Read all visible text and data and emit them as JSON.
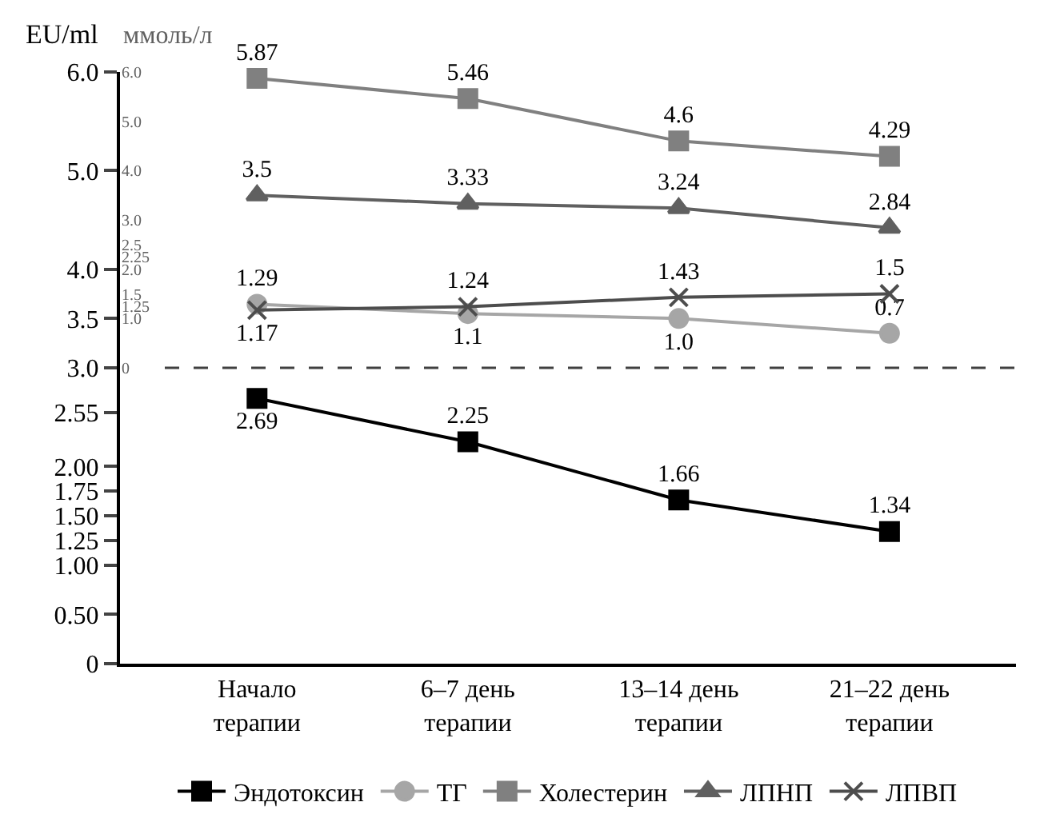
{
  "chart_data": {
    "type": "line",
    "categories": [
      "Начало\nтерапии",
      "6–7 день\nтерапии",
      "13–14 день\nтерапии",
      "21–22 день\nтерапии"
    ],
    "ylabel": "EU/ml",
    "y2label": "ммоль/л",
    "ylim": [
      0,
      6
    ],
    "yticks": [
      0,
      {
        "value": 0.5,
        "label": "0.50"
      },
      {
        "value": 1,
        "label": "1.00"
      },
      1.25,
      {
        "value": 1.5,
        "label": "1.50"
      },
      1.75,
      {
        "value": 2,
        "label": "2.00"
      },
      2.55,
      {
        "value": 3,
        "label": "3.0"
      },
      3.5,
      {
        "value": 4,
        "label": "4.0"
      },
      {
        "value": 5,
        "label": "5.0"
      },
      {
        "value": 6,
        "label": "6.0"
      }
    ],
    "y2lim": [
      0,
      6
    ],
    "y2ticks": [
      0,
      {
        "value": 1,
        "label": "1.0"
      },
      1.25,
      1.5,
      {
        "value": 2,
        "label": "2.0"
      },
      2.25,
      2.5,
      {
        "value": 3,
        "label": "3.0"
      },
      {
        "value": 4,
        "label": "4.0"
      },
      {
        "value": 5,
        "label": "5.0"
      },
      {
        "value": 6,
        "label": "6.0"
      }
    ],
    "series": [
      {
        "name": "Эндотоксин",
        "color": "#000000",
        "marker": "square",
        "values": [
          2.69,
          2.25,
          1.66,
          1.34
        ]
      },
      {
        "name": "ТГ",
        "color": "#a6a6a6",
        "marker": "circle",
        "axis": "y2",
        "values": [
          1.29,
          1.1,
          1.0,
          0.7
        ],
        "value_labels": [
          "1.29",
          "1.1",
          "1.0",
          "0.7"
        ]
      },
      {
        "name": "Холестерин",
        "color": "#808080",
        "marker": "square",
        "axis": "y2",
        "values": [
          5.87,
          5.46,
          4.6,
          4.29
        ]
      },
      {
        "name": "ЛПНП",
        "color": "#606060",
        "marker": "triangle",
        "axis": "y2",
        "values": [
          3.5,
          3.33,
          3.24,
          2.84
        ]
      },
      {
        "name": "ЛПВП",
        "color": "#4d4d4d",
        "marker": "cross",
        "axis": "y2",
        "values": [
          1.17,
          1.24,
          1.43,
          1.5
        ]
      }
    ],
    "ref_lines": [
      {
        "axis": "y",
        "value": 3,
        "line_style": "dashed",
        "color": "#404040"
      }
    ],
    "data_labels": true,
    "legend": "bottom"
  }
}
